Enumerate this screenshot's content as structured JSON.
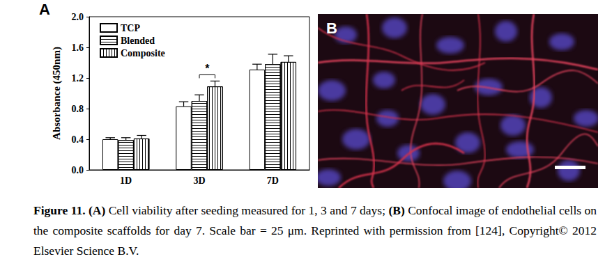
{
  "chart_data": {
    "type": "bar",
    "panel_label": "A",
    "y_label": "Absorbance (450nm)",
    "categories": [
      "1D",
      "3D",
      "7D"
    ],
    "series": [
      {
        "name": "TCP",
        "color": "#ffffff",
        "values": [
          0.4,
          0.83,
          1.31
        ],
        "errors": [
          0.02,
          0.06,
          0.07
        ]
      },
      {
        "name": "Blended",
        "color": "#ffffff",
        "values": [
          0.39,
          0.9,
          1.38
        ],
        "errors": [
          0.03,
          0.08,
          0.13
        ]
      },
      {
        "name": "Composite",
        "color": "#ffffff",
        "values": [
          0.41,
          1.09,
          1.41
        ],
        "errors": [
          0.04,
          0.07,
          0.08
        ]
      }
    ],
    "ylim": [
      0,
      2.0
    ],
    "yticks": [
      {
        "value": 0,
        "label": "0.0"
      },
      0.4,
      0.8,
      1.2,
      1.6,
      {
        "value": 2.0,
        "label": "2.0"
      }
    ],
    "annotations": [
      {
        "text": "*",
        "category": "3D",
        "between": [
          "Blended",
          "Composite"
        ]
      }
    ],
    "legend": "upper left",
    "grid": false
  },
  "image_panel": {
    "label": "B"
  },
  "caption": [
    {
      "text": "Figure 11. (A)",
      "bold": true
    },
    {
      "text": " Cell viability after seeding measured for 1, 3 and 7 days; ",
      "bold": false
    },
    {
      "text": "(B)",
      "bold": true
    },
    {
      "text": " Confocal image of endothelial cells on the composite scaffolds for day 7. Scale bar = 25 μm. Reprinted with permission from [124], Copyright© 2012 Elsevier Science B.V.",
      "bold": false
    }
  ]
}
